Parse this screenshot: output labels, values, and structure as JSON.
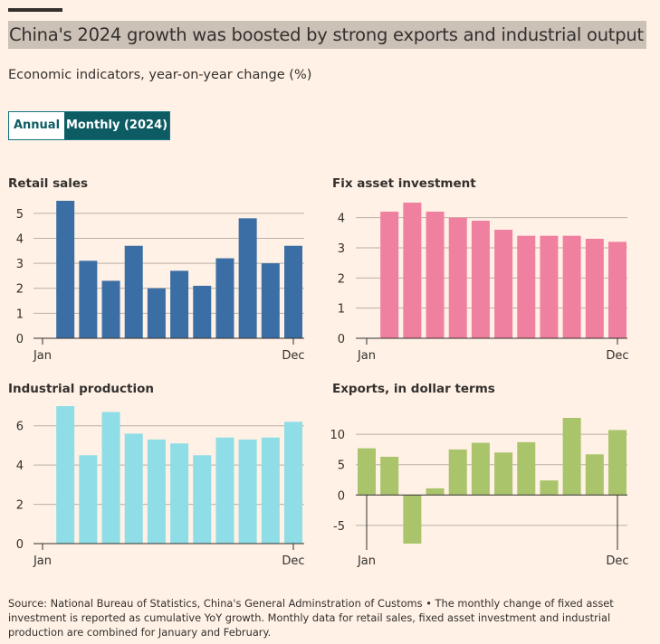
{
  "header": {
    "title": "China's 2024 growth was boosted by strong exports and industrial output",
    "subtitle": "Economic indicators, year-on-year change (%)"
  },
  "toggle": {
    "options": [
      "Annual",
      "Monthly (2024)"
    ],
    "selected": "Monthly (2024)"
  },
  "colors": {
    "background": "#FFF1E5",
    "grid": "#B8B0A8",
    "retail": "#3A6EA5",
    "investment": "#F080A0",
    "industrial": "#8FDDE6",
    "exports": "#A9C46B",
    "toggle_active": "#0D5C63"
  },
  "source": "Source: National Bureau of Statistics, China's General Adminstration of Customs • The monthly change of fixed asset investment is reported as cumulative YoY growth. Monthly data for retail sales, fixed asset investment and industrial production are combined for January and February.",
  "chart_data": [
    {
      "type": "bar",
      "title": "Retail sales",
      "x_first_label": "Jan",
      "x_last_label": "Dec",
      "values": [
        5.5,
        3.1,
        2.3,
        3.7,
        2.0,
        2.7,
        2.1,
        3.2,
        4.8,
        3.0,
        3.7
      ],
      "yticks": [
        0,
        1,
        2,
        3,
        4,
        5
      ],
      "ylim": [
        0,
        5.5
      ],
      "color": "#3A6EA5",
      "grid": true
    },
    {
      "type": "bar",
      "title": "Fix asset investment",
      "x_first_label": "Jan",
      "x_last_label": "Dec",
      "values": [
        4.2,
        4.5,
        4.2,
        4.0,
        3.9,
        3.6,
        3.4,
        3.4,
        3.4,
        3.3,
        3.2
      ],
      "yticks": [
        0,
        1,
        2,
        3,
        4
      ],
      "ylim": [
        0,
        4.5
      ],
      "color": "#F080A0",
      "grid": true
    },
    {
      "type": "bar",
      "title": "Industrial production",
      "x_first_label": "Jan",
      "x_last_label": "Dec",
      "values": [
        7.0,
        4.5,
        6.7,
        5.6,
        5.3,
        5.1,
        4.5,
        5.4,
        5.3,
        5.4,
        6.2
      ],
      "yticks": [
        0,
        2,
        4,
        6
      ],
      "ylim": [
        0,
        7
      ],
      "color": "#8FDDE6",
      "grid": true
    },
    {
      "type": "bar",
      "title": "Exports, in dollar terms",
      "x_first_label": "Jan",
      "x_last_label": "Dec",
      "values": [
        7.7,
        6.3,
        -8.0,
        1.1,
        7.5,
        8.6,
        7.0,
        8.7,
        2.4,
        12.7,
        6.7,
        10.7
      ],
      "yticks": [
        -5,
        0,
        5,
        10
      ],
      "ylim": [
        -8,
        13
      ],
      "color": "#A9C46B",
      "grid": true
    }
  ]
}
